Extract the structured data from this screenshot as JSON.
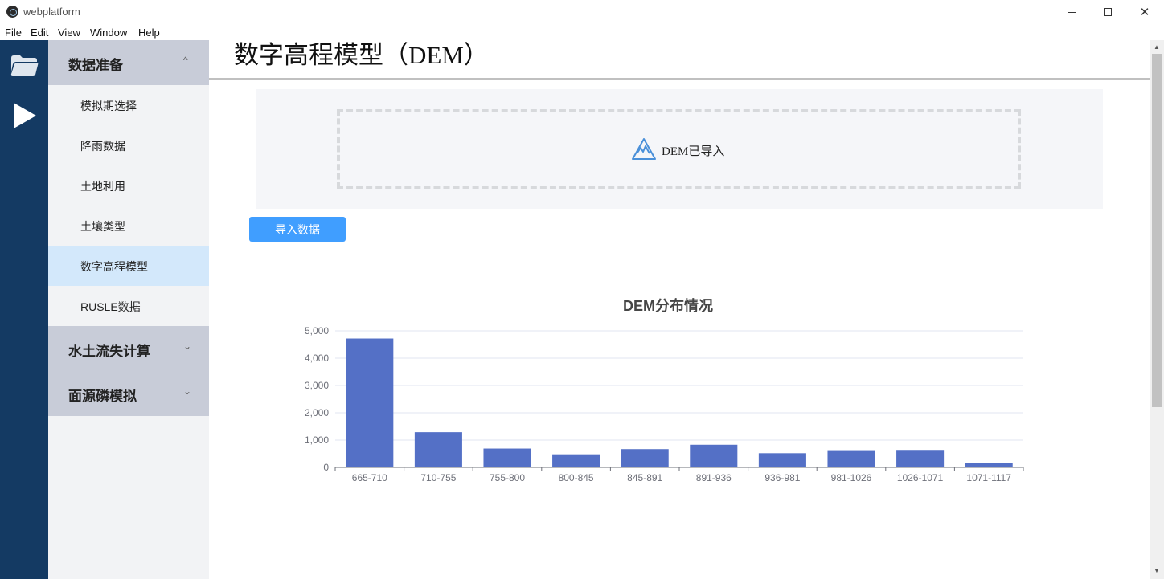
{
  "window": {
    "title": "webplatform",
    "minimize_icon": "minimize-icon",
    "maximize_icon": "maximize-icon",
    "close_glyph": "✕"
  },
  "menu": [
    "File",
    "Edit",
    "View",
    "Window",
    "Help"
  ],
  "rail": {
    "icons": [
      "folder-icon",
      "play-icon"
    ]
  },
  "sidebar": {
    "groups": [
      {
        "label": "数据准备",
        "chevron": "^",
        "expanded": true,
        "items": [
          {
            "label": "模拟期选择"
          },
          {
            "label": "降雨数据"
          },
          {
            "label": "土地利用"
          },
          {
            "label": "土壤类型"
          },
          {
            "label": "数字高程模型",
            "active": true
          },
          {
            "label": "RUSLE数据"
          }
        ]
      },
      {
        "label": "水土流失计算",
        "chevron": "⌄",
        "expanded": false
      },
      {
        "label": "面源磷模拟",
        "chevron": "⌄",
        "expanded": false
      }
    ]
  },
  "main": {
    "title": "数字高程模型（DEM）",
    "upload": {
      "status_text": "DEM已导入",
      "icon": "mountain-icon"
    },
    "import_button": "导入数据"
  },
  "chart_data": {
    "type": "bar",
    "title": "DEM分布情况",
    "xlabel": "",
    "ylabel": "",
    "categories": [
      "665-710",
      "710-755",
      "755-800",
      "800-845",
      "845-891",
      "891-936",
      "936-981",
      "981-1026",
      "1026-1071",
      "1071-1117"
    ],
    "values": [
      4720,
      1290,
      690,
      480,
      670,
      830,
      520,
      630,
      640,
      160
    ],
    "ylim": [
      0,
      5000
    ],
    "yticks": [
      "0",
      "1,000",
      "2,000",
      "3,000",
      "4,000",
      "5,000"
    ],
    "grid": true,
    "bar_color": "#5470c6"
  },
  "colors": {
    "rail": "#143a63",
    "sidebar_group": "#c8ccd8",
    "active_item": "#d3e8fb",
    "button": "#409eff"
  }
}
